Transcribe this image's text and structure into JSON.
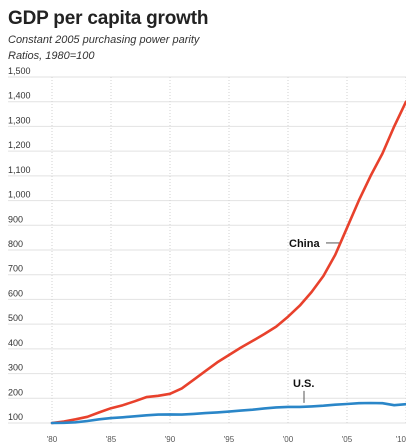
{
  "chart_data": {
    "type": "line",
    "title": "GDP per capita growth",
    "subtitle": "Constant 2005 purchasing power parity",
    "ylabel": "Ratios, 1980=100",
    "xlabel": "",
    "x": [
      1980,
      1981,
      1982,
      1983,
      1984,
      1985,
      1986,
      1987,
      1988,
      1989,
      1990,
      1991,
      1992,
      1993,
      1994,
      1995,
      1996,
      1997,
      1998,
      1999,
      2000,
      2001,
      2002,
      2003,
      2004,
      2005,
      2006,
      2007,
      2008,
      2009,
      2010
    ],
    "xticks": [
      1980,
      1985,
      1990,
      1995,
      2000,
      2005,
      2010
    ],
    "xtick_labels": [
      "'80",
      "'85",
      "'90",
      "'95",
      "'00",
      "'05",
      "'10"
    ],
    "ylim": [
      100,
      1500
    ],
    "yticks": [
      100,
      200,
      300,
      400,
      500,
      600,
      700,
      800,
      900,
      1000,
      1100,
      1200,
      1300,
      1400,
      1500
    ],
    "ytick_labels": [
      "100",
      "200",
      "300",
      "400",
      "500",
      "600",
      "700",
      "800",
      "900",
      "1,000",
      "1,100",
      "1,200",
      "1,300",
      "1,400",
      "1,500"
    ],
    "grid": true,
    "series": [
      {
        "name": "China",
        "color": "#e8412c",
        "values": [
          100,
          106,
          115,
          125,
          143,
          160,
          172,
          188,
          205,
          210,
          218,
          240,
          275,
          310,
          345,
          375,
          405,
          432,
          460,
          490,
          530,
          575,
          630,
          695,
          780,
          890,
          1000,
          1100,
          1190,
          1300,
          1400
        ]
      },
      {
        "name": "U.S.",
        "color": "#2a86c8",
        "values": [
          100,
          101,
          103,
          108,
          115,
          120,
          123,
          127,
          131,
          134,
          135,
          134,
          137,
          140,
          143,
          146,
          150,
          154,
          159,
          163,
          165,
          165,
          167,
          170,
          174,
          177,
          180,
          181,
          180,
          172,
          176
        ]
      }
    ]
  }
}
